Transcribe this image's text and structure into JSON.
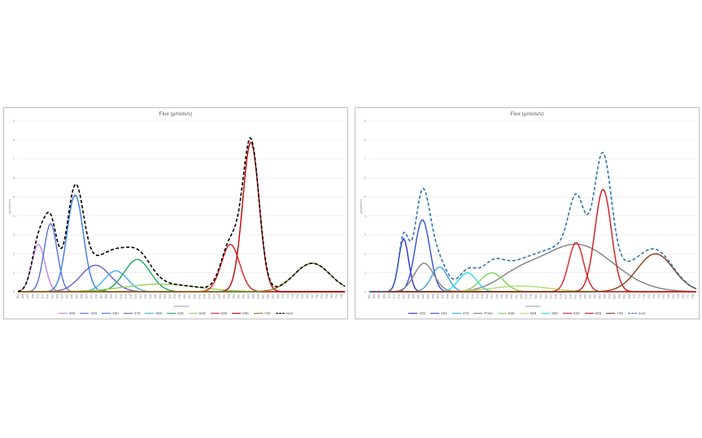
{
  "chart_data": [
    {
      "type": "line",
      "title": "Flux (µmols/s)",
      "xlabel": "nanometers",
      "ylabel": "µmols/s/nm",
      "xlim": [
        380,
        780
      ],
      "ylim": [
        0,
        9
      ],
      "yticks": [
        0,
        1,
        2,
        3,
        4,
        5,
        6,
        7,
        8,
        9
      ],
      "grid": "horizontal",
      "legend": "bottom",
      "series": [
        {
          "name": "405",
          "color": "#c080e8",
          "peaks": [
            [
              405,
              2.5,
              8
            ]
          ]
        },
        {
          "name": "420",
          "color": "#5a6fd6",
          "peaks": [
            [
              420,
              3.6,
              8
            ]
          ]
        },
        {
          "name": "450",
          "color": "#3a7be0",
          "peaks": [
            [
              450,
              5.1,
              10
            ]
          ]
        },
        {
          "name": "475",
          "color": "#6a5acd",
          "peaks": [
            [
              475,
              1.4,
              18
            ]
          ]
        },
        {
          "name": "500",
          "color": "#3fb0e8",
          "peaks": [
            [
              500,
              1.1,
              14
            ]
          ]
        },
        {
          "name": "526",
          "color": "#1aa85a",
          "peaks": [
            [
              526,
              1.7,
              16
            ]
          ]
        },
        {
          "name": "548",
          "color": "#8dd15a",
          "peaks": [
            [
              555,
              0.4,
              45
            ]
          ]
        },
        {
          "name": "630",
          "color": "#e02020",
          "peaks": [
            [
              640,
              2.5,
              11
            ]
          ]
        },
        {
          "name": "665",
          "color": "#c00000",
          "peaks": [
            [
              665,
              7.9,
              10
            ]
          ]
        },
        {
          "name": "740",
          "color": "#8a7a20",
          "peaks": [
            [
              740,
              1.5,
              22
            ]
          ]
        },
        {
          "name": "sum",
          "color": "#000000",
          "dashed": true,
          "peaks": []
        }
      ]
    },
    {
      "type": "line",
      "title": "Flux (µmols/s)",
      "xlabel": "nanometers",
      "ylabel": "µmols/s/nm",
      "xlim": [
        380,
        780
      ],
      "ylim": [
        0,
        9
      ],
      "yticks": [
        0,
        1,
        2,
        3,
        4,
        5,
        6,
        7,
        8,
        9
      ],
      "grid": "horizontal",
      "legend": "bottom",
      "series": [
        {
          "name": "420",
          "color": "#3030c8",
          "peaks": [
            [
              422,
              2.8,
              6
            ]
          ]
        },
        {
          "name": "451",
          "color": "#3050d8",
          "peaks": [
            [
              445,
              3.8,
              9
            ]
          ]
        },
        {
          "name": "475",
          "color": "#3fa0e8",
          "peaks": [
            [
              466,
              1.3,
              10
            ]
          ]
        },
        {
          "name": "Pose",
          "color": "#808080",
          "peaks": [
            [
              447,
              1.5,
              12
            ],
            [
              560,
              0.6,
              25
            ],
            [
              633,
              2.5,
              45
            ]
          ]
        },
        {
          "name": "526",
          "color": "#7dd35a",
          "peaks": [
            [
              530,
              1.0,
              14
            ]
          ]
        },
        {
          "name": "548",
          "color": "#b0e070",
          "peaks": [
            [
              565,
              0.3,
              35
            ]
          ]
        },
        {
          "name": "500",
          "color": "#30d8e0",
          "peaks": [
            [
              500,
              1.0,
              11
            ]
          ]
        },
        {
          "name": "630",
          "color": "#e02020",
          "peaks": [
            [
              633,
              2.6,
              9
            ]
          ]
        },
        {
          "name": "665",
          "color": "#d01818",
          "peaks": [
            [
              666,
              5.4,
              10
            ]
          ]
        },
        {
          "name": "735",
          "color": "#8b3a1a",
          "peaks": [
            [
              730,
              2.0,
              22
            ]
          ]
        },
        {
          "name": "sum",
          "color": "#2f75b5",
          "dashed": true,
          "peaks": []
        }
      ]
    }
  ]
}
